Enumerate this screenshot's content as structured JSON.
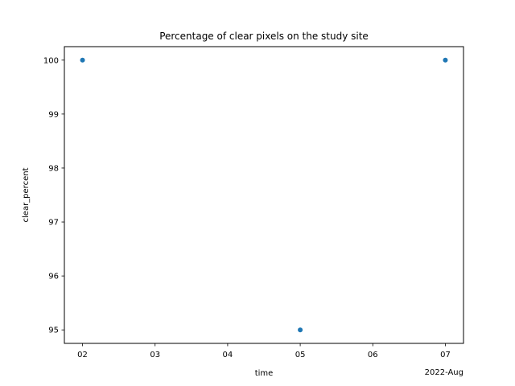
{
  "chart_data": {
    "type": "scatter",
    "title": "Percentage of clear pixels on the study site",
    "xlabel": "time",
    "ylabel": "clear_percent",
    "x_offset_label": "2022-Aug",
    "x_ticks": [
      "02",
      "03",
      "04",
      "05",
      "06",
      "07"
    ],
    "x_tick_values": [
      2,
      3,
      4,
      5,
      6,
      7
    ],
    "y_ticks": [
      "95",
      "96",
      "97",
      "98",
      "99",
      "100"
    ],
    "y_tick_values": [
      95,
      96,
      97,
      98,
      99,
      100
    ],
    "xlim": [
      1.75,
      7.25
    ],
    "ylim": [
      94.75,
      100.25
    ],
    "grid": false,
    "series": [
      {
        "x": [
          "2022-08-02",
          "2022-08-05",
          "2022-08-07"
        ],
        "y": [
          100,
          95,
          100
        ],
        "color": "#1f77b4"
      }
    ]
  }
}
